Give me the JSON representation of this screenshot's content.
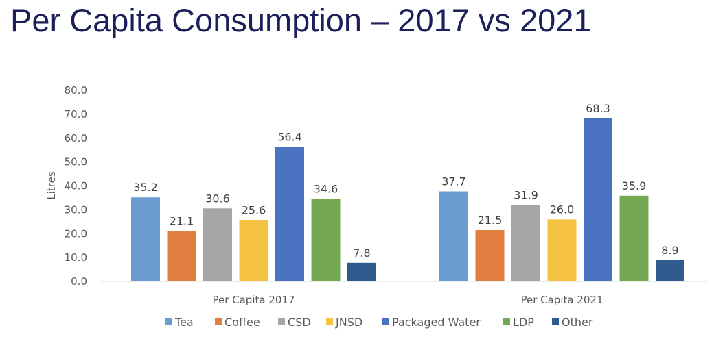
{
  "title": "Per Capita Consumption – 2017 vs 2021",
  "chart_data": {
    "type": "bar",
    "categories": [
      "Per Capita 2017",
      "Per Capita 2021"
    ],
    "series": [
      {
        "name": "Tea",
        "color": "#6a9bd1",
        "values": [
          35.2,
          37.7
        ]
      },
      {
        "name": "Coffee",
        "color": "#e07f3f",
        "values": [
          21.1,
          21.5
        ]
      },
      {
        "name": "CSD",
        "color": "#a5a5a5",
        "values": [
          30.6,
          31.9
        ]
      },
      {
        "name": "JNSD",
        "color": "#f5c242",
        "values": [
          25.6,
          26.0
        ]
      },
      {
        "name": "Packaged Water",
        "color": "#4a72c2",
        "values": [
          56.4,
          68.3
        ]
      },
      {
        "name": "LDP",
        "color": "#75a852",
        "values": [
          34.6,
          35.9
        ]
      },
      {
        "name": "Other",
        "color": "#2f5b8f",
        "values": [
          7.8,
          8.9
        ]
      }
    ],
    "ylabel": "Litres",
    "ylim": [
      0,
      80
    ],
    "yticks": [
      "0.0",
      "10.0",
      "20.0",
      "30.0",
      "40.0",
      "50.0",
      "60.0",
      "70.0",
      "80.0"
    ],
    "grid": false,
    "legend": "bottom"
  }
}
